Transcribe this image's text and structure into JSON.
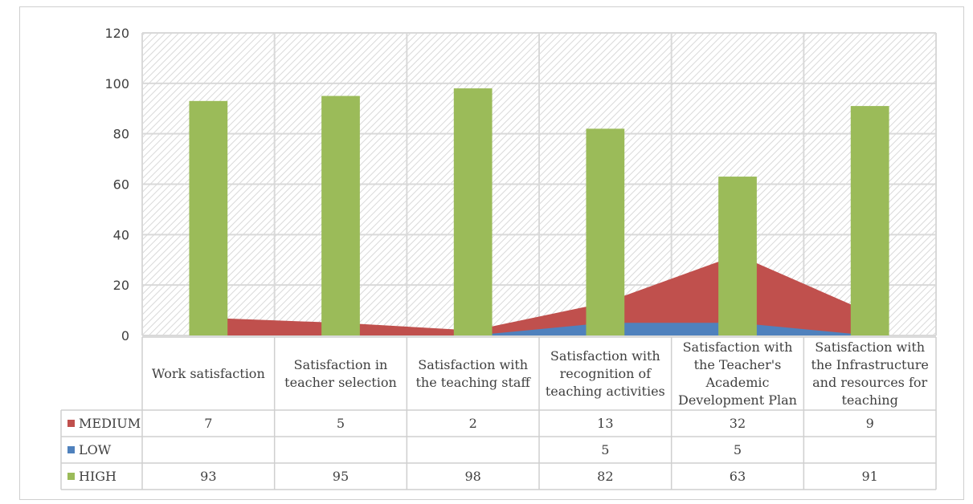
{
  "chart_data": {
    "type": "bar",
    "categories": [
      "Work satisfaction",
      "Satisfaction in teacher selection",
      "Satisfaction with the teaching staff",
      "Satisfaction with recognition of teaching activities",
      "Satisfaction with the Teacher's Academic Development Plan",
      "Satisfaction with the Infrastructure and resources for teaching"
    ],
    "series": [
      {
        "name": "MEDIUM",
        "chart_kind": "area",
        "color": "#c0504d",
        "values": [
          7,
          5,
          2,
          13,
          32,
          9
        ]
      },
      {
        "name": "LOW",
        "chart_kind": "area",
        "color": "#4f81bd",
        "values": [
          null,
          null,
          null,
          5,
          5,
          null
        ]
      },
      {
        "name": "HIGH",
        "chart_kind": "bar",
        "color": "#9bbb59",
        "values": [
          93,
          95,
          98,
          82,
          63,
          91
        ]
      }
    ],
    "ylim": [
      0,
      120
    ],
    "yticks": [
      0,
      20,
      40,
      60,
      80,
      100,
      120
    ],
    "grid": true,
    "legend": "data table"
  }
}
